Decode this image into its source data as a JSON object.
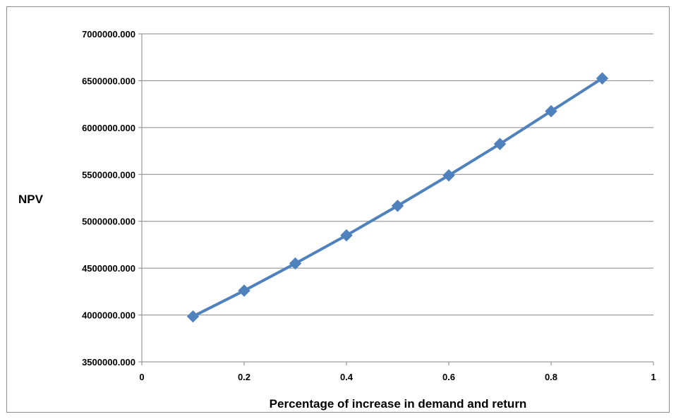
{
  "chart_data": {
    "type": "line",
    "title": "",
    "xlabel": "Percentage of increase in demand and return",
    "ylabel": "NPV",
    "xlim": [
      0,
      1
    ],
    "ylim": [
      3500000,
      7000000
    ],
    "x_ticks": [
      "0",
      "0.2",
      "0.4",
      "0.6",
      "0.8",
      "1"
    ],
    "y_ticks": [
      "3500000.000",
      "4000000.000",
      "4500000.000",
      "5000000.000",
      "5500000.000",
      "6000000.000",
      "6500000.000",
      "7000000.000"
    ],
    "grid": "horizontal",
    "legend": "none",
    "marker": "diamond",
    "series_color": "#4f81bd",
    "series": [
      {
        "x": [
          0.1,
          0.2,
          0.3,
          0.4,
          0.5,
          0.6,
          0.7,
          0.8,
          0.9
        ],
        "values": [
          3985000,
          4260000,
          4550000,
          4850000,
          5165000,
          5490000,
          5825000,
          6175000,
          6525000
        ]
      }
    ]
  }
}
